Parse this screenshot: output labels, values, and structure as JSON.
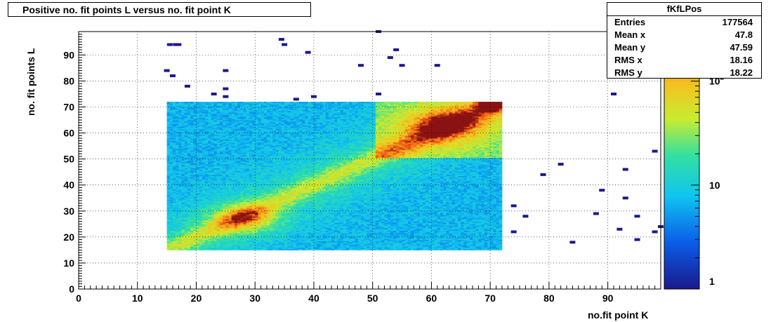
{
  "chart_data": {
    "type": "heatmap",
    "title": "Positive no. fit points L versus no. fit point K",
    "xlabel": "no.fit point K",
    "ylabel": "no. fit points  L",
    "xlim": [
      0,
      99
    ],
    "ylim": [
      0,
      99
    ],
    "x_ticks": [
      0,
      10,
      20,
      30,
      40,
      50,
      60,
      70,
      80,
      90
    ],
    "y_ticks": [
      0,
      10,
      20,
      30,
      40,
      50,
      60,
      70,
      80,
      90
    ],
    "grid": true,
    "z_scale": "log",
    "zlim": [
      1,
      300
    ],
    "colorbar_ticks": [
      "1",
      "10",
      "10^2"
    ],
    "dense_region": {
      "x": [
        15,
        72
      ],
      "y": [
        15,
        72
      ]
    },
    "hot_spots": [
      {
        "x": 28,
        "y": 27,
        "note": "diagonal peak"
      },
      {
        "x": 62,
        "y": 63,
        "note": "upper peak"
      },
      {
        "x": 70,
        "y": 71,
        "note": "maximum corner"
      }
    ],
    "sparse_points": [
      [
        15.5,
        94
      ],
      [
        16.5,
        94
      ],
      [
        17,
        94
      ],
      [
        34.5,
        96
      ],
      [
        35,
        94
      ],
      [
        39,
        91
      ],
      [
        51,
        99
      ],
      [
        54,
        92
      ],
      [
        53,
        89
      ],
      [
        55,
        86
      ],
      [
        48,
        86
      ],
      [
        61,
        86
      ],
      [
        15,
        84
      ],
      [
        16,
        82
      ],
      [
        25,
        84
      ],
      [
        25,
        77
      ],
      [
        18.5,
        78
      ],
      [
        23,
        75
      ],
      [
        25,
        74
      ],
      [
        37,
        73
      ],
      [
        40,
        74
      ],
      [
        51,
        75
      ],
      [
        91,
        75
      ],
      [
        98,
        53
      ],
      [
        82,
        48
      ],
      [
        79,
        44
      ],
      [
        93,
        46
      ],
      [
        89,
        38
      ],
      [
        93,
        35
      ],
      [
        74,
        32
      ],
      [
        76,
        28
      ],
      [
        88,
        29
      ],
      [
        95,
        28
      ],
      [
        99,
        24
      ],
      [
        92,
        23
      ],
      [
        74,
        22
      ],
      [
        98,
        22
      ],
      [
        95,
        19
      ],
      [
        84,
        18
      ]
    ]
  },
  "stats": {
    "name": "fKfLPos",
    "rows": [
      {
        "key": "Entries",
        "value": "177564"
      },
      {
        "key": "Mean x",
        "value": "47.8"
      },
      {
        "key": "Mean y",
        "value": "47.59"
      },
      {
        "key": "RMS x",
        "value": "18.16"
      },
      {
        "key": "RMS y",
        "value": "18.22"
      }
    ]
  }
}
